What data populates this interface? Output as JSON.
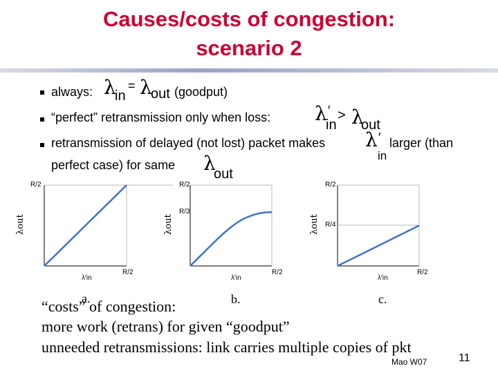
{
  "title": {
    "line1": "Causes/costs of congestion:",
    "line2": "scenario 2"
  },
  "bullets": {
    "b1_text": "always:",
    "b1_eq": "=",
    "b1_out_sub": "out",
    "b1_in_sub": "in",
    "b1_goodput": "(goodput)",
    "b2_text": "“perfect” retransmission only when loss:",
    "b2_prime": "′",
    "b2_gt": ">",
    "b2_in_sub": "in",
    "b2_out_sub": "out",
    "b3_text": "retransmission of delayed (not lost) packet makes",
    "b3_prime": "′",
    "b3_in_sub": "in",
    "b3_tail": "larger (than",
    "b3_line2": "perfect case) for same",
    "b3_out_sub": "out"
  },
  "lambda_symbol": "λ",
  "plots": {
    "a": {
      "caption": "a.",
      "y_tick": "R/2",
      "x_tick": "R/2",
      "y_label": "λout",
      "x_label": "λ′in"
    },
    "b": {
      "caption": "b.",
      "y_tick": "R/2",
      "x_tick": "R/2",
      "curve_label": "R/3",
      "y_label": "λout",
      "x_label": "λ′in"
    },
    "c": {
      "caption": "c.",
      "y_tick": "R/2",
      "x_tick": "R/2",
      "curve_label": "R/4",
      "y_label": "λout",
      "x_label": "λ′in"
    }
  },
  "chart_data": [
    {
      "type": "line",
      "panel": "a.",
      "x": [
        0,
        0.5
      ],
      "y": [
        0,
        0.5
      ],
      "x_tick": "R/2",
      "y_tick": "R/2"
    },
    {
      "type": "line",
      "panel": "b.",
      "x": [
        0,
        0.1,
        0.2,
        0.3,
        0.38,
        0.44,
        0.5
      ],
      "y": [
        0,
        0.1,
        0.2,
        0.28,
        0.315,
        0.33,
        0.333
      ],
      "x_tick": "R/2",
      "y_tick": "R/2",
      "plateau_label": "R/3"
    },
    {
      "type": "line",
      "panel": "c.",
      "x": [
        0,
        0.5
      ],
      "y": [
        0,
        0.25
      ],
      "x_tick": "R/2",
      "y_tick": "R/2",
      "plateau_label": "R/4"
    }
  ],
  "costs": {
    "line1": "“costs” of congestion:",
    "line2": "more work (retrans) for given “goodput”",
    "line3": "unneeded retransmissions: link carries multiple copies of pkt"
  },
  "footer": {
    "author": "Mao W07",
    "page": "11"
  },
  "colors": {
    "title": "#cc0033",
    "plot_line": "#3b73c8"
  }
}
